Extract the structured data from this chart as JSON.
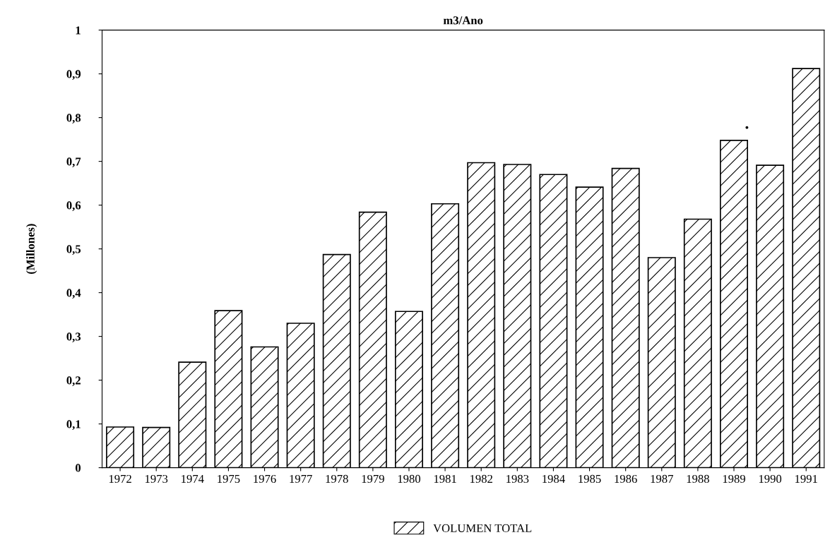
{
  "chart_data": {
    "type": "bar",
    "title": "m3/Ano",
    "ylabel": "(Millones)",
    "categories": [
      "1972",
      "1973",
      "1974",
      "1975",
      "1976",
      "1977",
      "1978",
      "1979",
      "1980",
      "1981",
      "1982",
      "1983",
      "1984",
      "1985",
      "1986",
      "1987",
      "1988",
      "1989",
      "1990",
      "1991"
    ],
    "series": [
      {
        "name": "VOLUMEN TOTAL",
        "color": "#000000",
        "values": [
          0.093,
          0.092,
          0.241,
          0.359,
          0.276,
          0.33,
          0.487,
          0.584,
          0.357,
          0.603,
          0.697,
          0.693,
          0.67,
          0.641,
          0.684,
          0.48,
          0.568,
          0.748,
          0.691,
          0.912
        ]
      }
    ],
    "ylim": [
      0,
      1
    ],
    "yticks": [
      0,
      {
        "value": 0.1,
        "label": "0,1"
      },
      {
        "value": 0.2,
        "label": "0,2"
      },
      {
        "value": 0.3,
        "label": "0,3"
      },
      {
        "value": 0.4,
        "label": "0,4"
      },
      {
        "value": 0.5,
        "label": "0,5"
      },
      {
        "value": 0.6,
        "label": "0,6"
      },
      {
        "value": 0.7,
        "label": "0,7"
      },
      {
        "value": 0.8,
        "label": "0,8"
      },
      {
        "value": 0.9,
        "label": "0,9"
      },
      1
    ],
    "annotations": [
      "•"
    ],
    "legend": "bottom",
    "grid": false
  }
}
